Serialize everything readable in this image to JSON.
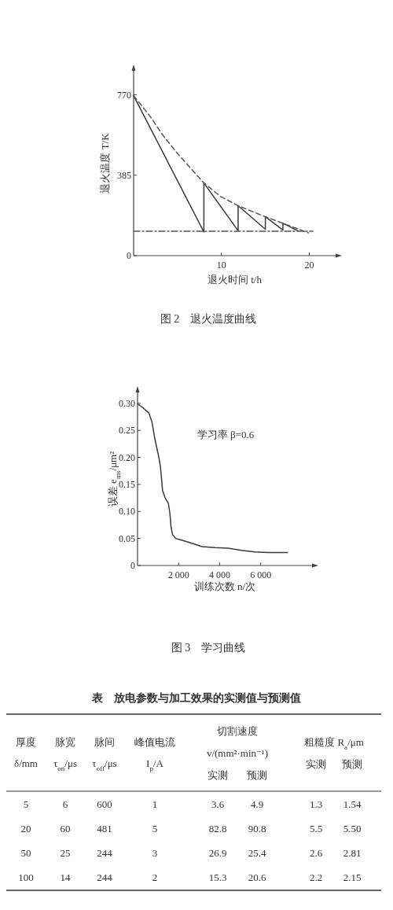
{
  "chart_data": [
    {
      "type": "line",
      "title": "图 2　退火温度曲线",
      "xlabel": "退火时间 t/h",
      "ylabel": "退火温度 T/K",
      "xlim": [
        0,
        23
      ],
      "ylim": [
        0,
        885
      ],
      "xticks": [
        10,
        20
      ],
      "yticks": [
        0,
        385,
        770
      ],
      "series": [
        {
          "color": "#3a3a3a",
          "line_style": "solid",
          "x": [
            0,
            8,
            8,
            11.9,
            11.9,
            15,
            15,
            17,
            17,
            18.7
          ],
          "values": [
            766,
            113,
            348,
            119,
            239,
            126,
            186,
            123,
            155,
            119
          ]
        },
        {
          "color": "#555555",
          "line_style": "dashed",
          "x": [
            0,
            1.8,
            3.3,
            5.1,
            8,
            9.9,
            11.9,
            15,
            17,
            19.9
          ],
          "values": [
            766,
            672,
            578,
            484,
            348,
            283,
            239,
            186,
            155,
            109
          ]
        },
        {
          "color": "#555555",
          "line_style": "dashdot",
          "x": [
            0,
            20.4
          ],
          "values": [
            117,
            117
          ]
        }
      ]
    },
    {
      "type": "line",
      "title": "图 3　学习曲线",
      "xlabel": "训练次数 n/次",
      "ylabel": "误差 e$_{ms}$/μm²",
      "annotations": [
        "学习率 β=0.6"
      ],
      "xlim": [
        0,
        8500
      ],
      "ylim": [
        0,
        0.32
      ],
      "xticks": [
        {
          "value": 2000,
          "label": "2 000"
        },
        {
          "value": 4000,
          "label": "4 000"
        },
        {
          "value": 6000,
          "label": "6 000"
        }
      ],
      "yticks": [
        0,
        0.05,
        {
          "value": 0.1,
          "label": "0.10"
        },
        0.15,
        {
          "value": 0.2,
          "label": "0.20"
        },
        0.25,
        {
          "value": 0.3,
          "label": "0.30"
        }
      ],
      "series": [
        {
          "color": "#3a3a3a",
          "x": [
            0,
            256,
            551,
            705,
            833,
            1026,
            1115,
            1218,
            1346,
            1500,
            1577,
            1628,
            1705,
            1859,
            2051,
            2500,
            3141,
            3782,
            4423,
            5064,
            5705,
            6346,
            6987,
            7308
          ],
          "values": [
            0.299,
            0.292,
            0.282,
            0.265,
            0.236,
            0.202,
            0.183,
            0.139,
            0.125,
            0.115,
            0.096,
            0.072,
            0.057,
            0.05,
            0.048,
            0.043,
            0.035,
            0.033,
            0.032,
            0.028,
            0.025,
            0.024,
            0.024,
            0.024
          ]
        }
      ]
    },
    {
      "type": "other",
      "title": "表　放电参数与加工效果的实测值与预测值",
      "annotations": [
        "切割速度",
        "v/(mm²·min⁻¹)",
        "粗糙度 R$_{a}$/μm"
      ],
      "categories": [
        "厚度\nδ/mm",
        "脉宽\nτ$_{on}$/μs",
        "脉间\nτ$_{off}$/μs",
        "峰值电流\nI$_{p}$/A",
        "实测",
        "预测",
        "实测",
        "预测"
      ],
      "cell_labels": [
        [
          "5",
          "6",
          "600",
          "1",
          "3.6",
          "4.9",
          "1.3",
          "1.54"
        ],
        [
          "20",
          "60",
          "481",
          "5",
          "82.8",
          "90.8",
          "5.5",
          "5.50"
        ],
        [
          "50",
          "25",
          "244",
          "3",
          "26.9",
          "25.4",
          "2.6",
          "2.81"
        ],
        [
          "100",
          "14",
          "244",
          "2",
          "15.3",
          "20.6",
          "2.2",
          "2.15"
        ]
      ]
    }
  ]
}
